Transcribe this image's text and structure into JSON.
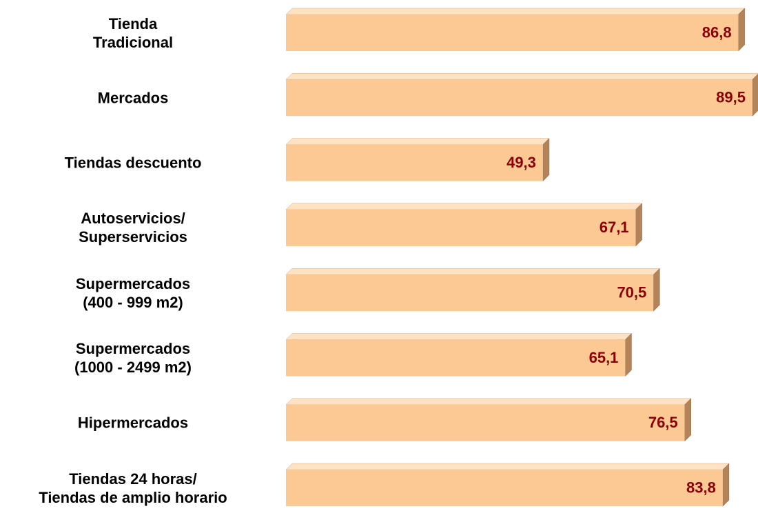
{
  "chart_data": {
    "type": "bar",
    "orientation": "horizontal",
    "categories": [
      "Tienda\nTradicional",
      "Mercados",
      "Tiendas descuento",
      "Autoservicios/\nSuperservicios",
      "Supermercados\n(400 - 999 m2)",
      "Supermercados\n(1000 - 2499 m2)",
      "Hipermercados",
      "Tiendas 24 horas/\nTiendas de amplio horario"
    ],
    "values": [
      86.8,
      89.5,
      49.3,
      67.1,
      70.5,
      65.1,
      76.5,
      83.8
    ],
    "value_labels": [
      "86,8",
      "89,5",
      "49,3",
      "67,1",
      "70,5",
      "65,1",
      "76,5",
      "83,8"
    ],
    "color": "#fcc995",
    "label_color": "#8b0000"
  }
}
